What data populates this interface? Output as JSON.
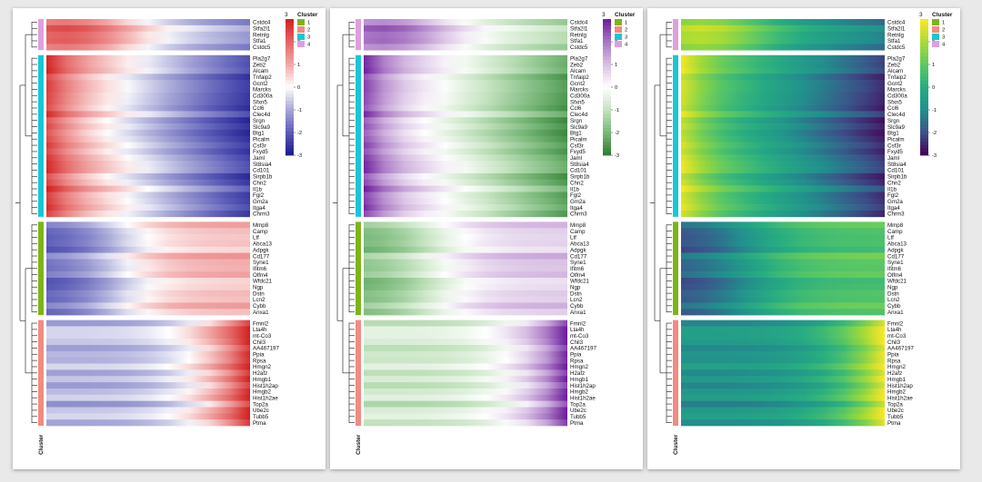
{
  "chart_data": {
    "type": "heatmap",
    "annotation_title": "Cluster",
    "legend_title": "3",
    "cluster_legend": [
      "1",
      "2",
      "3",
      "4"
    ],
    "colorbar_ticks": [
      "2",
      "1",
      "0",
      "-1",
      "-2",
      "-3"
    ],
    "colorbar_range": [
      -3,
      3
    ],
    "cluster_colors": {
      "1": "#7cb518",
      "2": "#f28b82",
      "3": "#17c7d6",
      "4": "#dda0dd"
    },
    "groups": [
      {
        "cluster": "4",
        "genes": [
          "Cstdc4",
          "Stfa2l1",
          "Retnlg",
          "Stfa1",
          "Cstdc5"
        ]
      },
      {
        "cluster": "3",
        "genes": [
          "Pla2g7",
          "Zeb2",
          "Alcam",
          "Tnfaip2",
          "Gcnt2",
          "Marcks",
          "Cd300a",
          "Sfxn5",
          "Ccl6",
          "Clec4d",
          "Srgn",
          "Slc9a9",
          "Btg1",
          "Picalm",
          "Csf3r",
          "Fxyd5",
          "Jaml",
          "St8sia4",
          "Cd101",
          "Sirpb1b",
          "Chn2",
          "Il1b",
          "Fgl2",
          "Gm2a",
          "Itga4",
          "Chrm3"
        ]
      },
      {
        "cluster": "1",
        "genes": [
          "Mmp8",
          "Camp",
          "Ltf",
          "Abca13",
          "Adpgk",
          "Cd177",
          "Syne1",
          "Ifitm6",
          "Olfm4",
          "Wfdc21",
          "Ngp",
          "Dstn",
          "Lcn2",
          "Cybb",
          "Anxa1"
        ]
      },
      {
        "cluster": "2",
        "genes": [
          "Fmnl2",
          "Lta4h",
          "mt-Co3",
          "Chil3",
          "AA467197",
          "Ppia",
          "Rpsa",
          "Hmgn2",
          "H2afz",
          "Hmgb1",
          "Hist1h2ap",
          "Hmgb2",
          "Hist1h2ae",
          "Top2a",
          "Ube2c",
          "Tubb5",
          "Ptma"
        ]
      }
    ],
    "panels": [
      {
        "name": "red-white-blue",
        "palette": [
          "#1a1a8c",
          "#5b5bb8",
          "#a7a7d8",
          "#ffffff",
          "#f1a8a8",
          "#e46565",
          "#d21f1f"
        ]
      },
      {
        "name": "green-white-purple",
        "palette": [
          "#2e7d32",
          "#78b879",
          "#c5e3c0",
          "#ffffff",
          "#d8bfe3",
          "#a876c4",
          "#6a1b9a"
        ]
      },
      {
        "name": "viridis",
        "palette": [
          "#440154",
          "#3b528b",
          "#21908d",
          "#27ad81",
          "#5dc963",
          "#aadc32",
          "#fde725"
        ]
      }
    ]
  }
}
